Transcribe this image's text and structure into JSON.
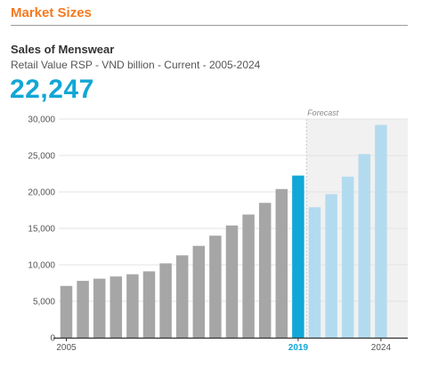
{
  "header": {
    "section_title": "Market Sizes"
  },
  "chart": {
    "title": "Sales of Menswear",
    "subtitle": "Retail Value RSP - VND billion - Current - 2005-2024",
    "highlight_value": "22,247",
    "forecast_label": "Forecast"
  },
  "colors": {
    "accent_orange": "#f47a20",
    "highlight_blue": "#11a7d6",
    "historic_gray": "#a6a6a7",
    "forecast_blue": "#b3dbef",
    "forecast_bg": "#f1f1f1"
  },
  "chart_data": {
    "type": "bar",
    "categories": [
      "2005",
      "2006",
      "2007",
      "2008",
      "2009",
      "2010",
      "2011",
      "2012",
      "2013",
      "2014",
      "2015",
      "2016",
      "2017",
      "2018",
      "2019",
      "2020",
      "2021",
      "2022",
      "2023",
      "2024"
    ],
    "values": [
      7100,
      7800,
      8100,
      8400,
      8700,
      9100,
      10200,
      11300,
      12600,
      14000,
      15400,
      16900,
      18500,
      20400,
      22247,
      17900,
      19700,
      22100,
      25200,
      29200
    ],
    "segments": [
      "historic",
      "historic",
      "historic",
      "historic",
      "historic",
      "historic",
      "historic",
      "historic",
      "historic",
      "historic",
      "historic",
      "historic",
      "historic",
      "historic",
      "current",
      "forecast",
      "forecast",
      "forecast",
      "forecast",
      "forecast"
    ],
    "x_tick_labels": [
      "2005",
      "2019",
      "2024"
    ],
    "y_ticks": [
      "0",
      "5,000",
      "10,000",
      "15,000",
      "20,000",
      "25,000",
      "30,000"
    ],
    "y_tick_values": [
      0,
      5000,
      10000,
      15000,
      20000,
      25000,
      30000
    ],
    "ylim": [
      0,
      30000
    ],
    "grid": true,
    "xlabel": "",
    "ylabel": ""
  }
}
